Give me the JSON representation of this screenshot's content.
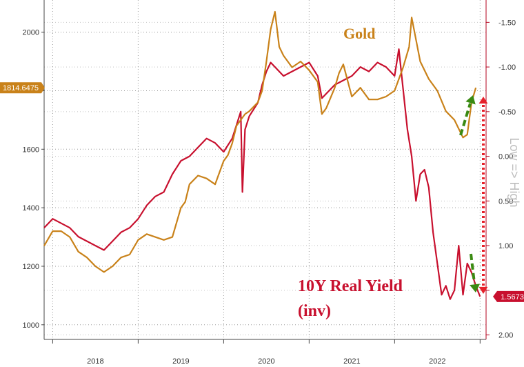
{
  "colors": {
    "gold": "#c9821a",
    "real_yield": "#c8102e",
    "green_arrow": "#3a8a12",
    "red_arrow": "#e6202a",
    "grid": "#9a9a9a",
    "right_axis": "#b3001b"
  },
  "chart_data": {
    "type": "line",
    "title": "",
    "x_ticks": [
      "2018",
      "2019",
      "2020",
      "2021",
      "2022"
    ],
    "y_left": {
      "range": [
        950,
        2110
      ],
      "ticks": [
        1000,
        1200,
        1400,
        1600,
        1800,
        2000
      ],
      "tick_labels": [
        "1000",
        "1200",
        "1400",
        "1600",
        "",
        "2000"
      ]
    },
    "y_right": {
      "label": "Low => High",
      "inverted": true,
      "range": [
        2.05,
        -1.75
      ],
      "ticks": [
        -1.5,
        -1.0,
        -0.5,
        0.0,
        0.5,
        1.0,
        1.5,
        2.0
      ],
      "tick_labels": [
        "-1.50",
        "-1.00",
        "-0.50",
        "0.00",
        "0.50",
        "1.00",
        "",
        "2.00"
      ]
    },
    "last_values": {
      "gold": "1814.6475",
      "real_yield": "1.5673"
    },
    "series": [
      {
        "name": "Gold",
        "axis": "left",
        "x": [
          2017.9,
          2018.0,
          2018.1,
          2018.2,
          2018.3,
          2018.4,
          2018.5,
          2018.6,
          2018.7,
          2018.8,
          2018.9,
          2019.0,
          2019.1,
          2019.2,
          2019.3,
          2019.4,
          2019.5,
          2019.55,
          2019.6,
          2019.7,
          2019.8,
          2019.9,
          2020.0,
          2020.05,
          2020.1,
          2020.15,
          2020.2,
          2020.25,
          2020.3,
          2020.4,
          2020.45,
          2020.5,
          2020.55,
          2020.6,
          2020.65,
          2020.7,
          2020.8,
          2020.9,
          2021.0,
          2021.1,
          2021.15,
          2021.2,
          2021.3,
          2021.35,
          2021.4,
          2021.5,
          2021.6,
          2021.7,
          2021.8,
          2021.9,
          2022.0,
          2022.1,
          2022.17,
          2022.2,
          2022.3,
          2022.4,
          2022.5,
          2022.6,
          2022.7,
          2022.8,
          2022.85,
          2022.9,
          2022.95
        ],
        "y": [
          1270,
          1320,
          1320,
          1300,
          1250,
          1230,
          1200,
          1180,
          1200,
          1230,
          1240,
          1290,
          1310,
          1300,
          1290,
          1300,
          1400,
          1420,
          1480,
          1510,
          1500,
          1480,
          1560,
          1580,
          1620,
          1680,
          1700,
          1720,
          1730,
          1760,
          1800,
          1900,
          2010,
          2070,
          1950,
          1920,
          1880,
          1900,
          1870,
          1830,
          1720,
          1740,
          1810,
          1860,
          1890,
          1780,
          1810,
          1770,
          1770,
          1780,
          1800,
          1880,
          1950,
          2050,
          1900,
          1840,
          1800,
          1730,
          1700,
          1640,
          1650,
          1760,
          1810
        ]
      },
      {
        "name": "10Y Real Yield\n(inv)",
        "axis": "right",
        "x": [
          2017.9,
          2018.0,
          2018.1,
          2018.2,
          2018.3,
          2018.4,
          2018.5,
          2018.6,
          2018.7,
          2018.8,
          2018.9,
          2019.0,
          2019.1,
          2019.2,
          2019.3,
          2019.4,
          2019.5,
          2019.6,
          2019.7,
          2019.8,
          2019.9,
          2020.0,
          2020.1,
          2020.15,
          2020.2,
          2020.22,
          2020.25,
          2020.3,
          2020.4,
          2020.45,
          2020.5,
          2020.55,
          2020.6,
          2020.7,
          2020.8,
          2020.9,
          2021.0,
          2021.1,
          2021.15,
          2021.2,
          2021.3,
          2021.4,
          2021.5,
          2021.6,
          2021.7,
          2021.8,
          2021.9,
          2022.0,
          2022.05,
          2022.1,
          2022.15,
          2022.2,
          2022.25,
          2022.3,
          2022.35,
          2022.4,
          2022.45,
          2022.5,
          2022.55,
          2022.6,
          2022.65,
          2022.7,
          2022.75,
          2022.8,
          2022.85,
          2022.9,
          2022.95,
          2023.0
        ],
        "y": [
          0.8,
          0.7,
          0.75,
          0.8,
          0.9,
          0.95,
          1.0,
          1.05,
          0.95,
          0.85,
          0.8,
          0.7,
          0.55,
          0.45,
          0.4,
          0.2,
          0.05,
          0.0,
          -0.1,
          -0.2,
          -0.15,
          -0.05,
          -0.2,
          -0.35,
          -0.5,
          0.4,
          -0.3,
          -0.45,
          -0.6,
          -0.8,
          -0.95,
          -1.05,
          -1.0,
          -0.9,
          -0.95,
          -1.0,
          -1.05,
          -0.9,
          -0.65,
          -0.7,
          -0.8,
          -0.85,
          -0.9,
          -1.0,
          -0.95,
          -1.05,
          -1.0,
          -0.9,
          -1.2,
          -0.75,
          -0.3,
          0.0,
          0.5,
          0.2,
          0.15,
          0.35,
          0.85,
          1.2,
          1.55,
          1.45,
          1.6,
          1.5,
          1.0,
          1.55,
          1.2,
          1.3,
          1.45,
          1.57
        ]
      }
    ]
  }
}
